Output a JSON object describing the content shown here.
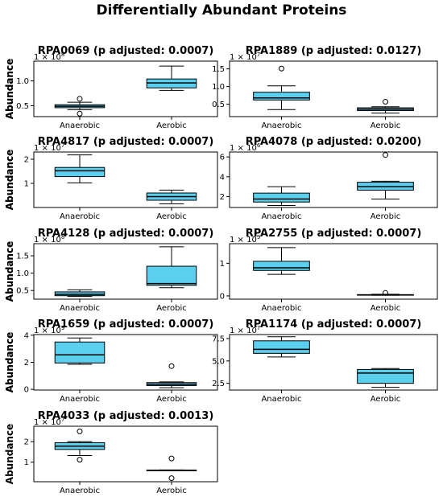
{
  "figure": {
    "title": "Differentially Abundant Proteins"
  },
  "style": {
    "box_fill": "#5bcfee",
    "edge": "#000000"
  },
  "chart_data": [
    {
      "type": "box",
      "title": "RPA0069 (p adjusted: 0.0007)",
      "ylabel": "Abundance",
      "categories": [
        "Anaerobic",
        "Aerobic"
      ],
      "exponent": "8",
      "ylim": [
        0.28,
        1.4
      ],
      "yticks": [
        {
          "v": 0.5,
          "label": "0.5"
        },
        {
          "v": 1.0,
          "label": "1.0"
        }
      ],
      "boxes": [
        {
          "whislo": 0.42,
          "q1": 0.46,
          "med": 0.49,
          "q3": 0.52,
          "whishi": 0.57,
          "fliers": [
            0.64,
            0.34
          ]
        },
        {
          "whislo": 0.81,
          "q1": 0.86,
          "med": 0.96,
          "q3": 1.04,
          "whishi": 1.3,
          "fliers": []
        }
      ]
    },
    {
      "type": "box",
      "title": "RPA1889 (p adjusted: 0.0127)",
      "ylabel": "Abundance",
      "categories": [
        "Anaerobic",
        "Aerobic"
      ],
      "exponent": "7",
      "ylim": [
        0.15,
        1.72
      ],
      "yticks": [
        {
          "v": 0.5,
          "label": "0.5"
        },
        {
          "v": 1.0,
          "label": "1.0"
        },
        {
          "v": 1.5,
          "label": "1.5"
        }
      ],
      "boxes": [
        {
          "whislo": 0.35,
          "q1": 0.62,
          "med": 0.68,
          "q3": 0.84,
          "whishi": 1.02,
          "fliers": [
            1.51
          ]
        },
        {
          "whislo": 0.25,
          "q1": 0.32,
          "med": 0.36,
          "q3": 0.4,
          "whishi": 0.43,
          "fliers": [
            0.57
          ]
        }
      ]
    },
    {
      "type": "box",
      "title": "RPA4817 (p adjusted: 0.0007)",
      "ylabel": "Abundance",
      "categories": [
        "Anaerobic",
        "Aerobic"
      ],
      "exponent": "7",
      "ylim": [
        0.0,
        2.3
      ],
      "yticks": [
        {
          "v": 1,
          "label": "1"
        },
        {
          "v": 2,
          "label": "2"
        }
      ],
      "boxes": [
        {
          "whislo": 1.02,
          "q1": 1.28,
          "med": 1.52,
          "q3": 1.66,
          "whishi": 2.18,
          "fliers": []
        },
        {
          "whislo": 0.15,
          "q1": 0.3,
          "med": 0.45,
          "q3": 0.6,
          "whishi": 0.72,
          "fliers": []
        }
      ]
    },
    {
      "type": "box",
      "title": "RPA4078 (p adjusted: 0.0200)",
      "ylabel": "Abundance",
      "categories": [
        "Anaerobic",
        "Aerobic"
      ],
      "exponent": "6",
      "ylim": [
        0.9,
        6.5
      ],
      "yticks": [
        {
          "v": 2,
          "label": "2"
        },
        {
          "v": 4,
          "label": "4"
        },
        {
          "v": 6,
          "label": "6"
        }
      ],
      "boxes": [
        {
          "whislo": 1.1,
          "q1": 1.45,
          "med": 1.75,
          "q3": 2.35,
          "whishi": 3.0,
          "fliers": []
        },
        {
          "whislo": 1.75,
          "q1": 2.65,
          "med": 3.0,
          "q3": 3.45,
          "whishi": 3.55,
          "fliers": [
            6.2
          ]
        }
      ]
    },
    {
      "type": "box",
      "title": "RPA4128 (p adjusted: 0.0007)",
      "ylabel": "Abundance",
      "categories": [
        "Anaerobic",
        "Aerobic"
      ],
      "exponent": "8",
      "ylim": [
        0.25,
        1.85
      ],
      "yticks": [
        {
          "v": 0.5,
          "label": "0.5"
        },
        {
          "v": 1.0,
          "label": "1.0"
        },
        {
          "v": 1.5,
          "label": "1.5"
        }
      ],
      "boxes": [
        {
          "whislo": 0.33,
          "q1": 0.35,
          "med": 0.39,
          "q3": 0.46,
          "whishi": 0.52,
          "fliers": []
        },
        {
          "whislo": 0.58,
          "q1": 0.65,
          "med": 0.7,
          "q3": 1.2,
          "whishi": 1.76,
          "fliers": []
        }
      ]
    },
    {
      "type": "box",
      "title": "RPA2755 (p adjusted: 0.0007)",
      "ylabel": "Abundance",
      "categories": [
        "Anaerobic",
        "Aerobic"
      ],
      "exponent": "9",
      "ylim": [
        -0.1,
        1.6
      ],
      "yticks": [
        {
          "v": 0,
          "label": "0"
        },
        {
          "v": 1,
          "label": "1"
        }
      ],
      "boxes": [
        {
          "whislo": 0.66,
          "q1": 0.78,
          "med": 0.86,
          "q3": 1.06,
          "whishi": 1.48,
          "fliers": []
        },
        {
          "whislo": 0.02,
          "q1": 0.03,
          "med": 0.03,
          "q3": 0.04,
          "whishi": 0.05,
          "fliers": [
            0.09
          ]
        }
      ]
    },
    {
      "type": "box",
      "title": "RPA1659 (p adjusted: 0.0007)",
      "ylabel": "Abundance",
      "categories": [
        "Anaerobic",
        "Aerobic"
      ],
      "exponent": "9",
      "ylim": [
        -0.05,
        4.05
      ],
      "yticks": [
        {
          "v": 0,
          "label": "0"
        },
        {
          "v": 2,
          "label": "2"
        },
        {
          "v": 4,
          "label": "4"
        }
      ],
      "boxes": [
        {
          "whislo": 1.85,
          "q1": 1.95,
          "med": 2.55,
          "q3": 3.5,
          "whishi": 3.8,
          "fliers": []
        },
        {
          "whislo": 0.12,
          "q1": 0.28,
          "med": 0.38,
          "q3": 0.5,
          "whishi": 0.55,
          "fliers": [
            1.72
          ]
        }
      ]
    },
    {
      "type": "box",
      "title": "RPA1174 (p adjusted: 0.0007)",
      "ylabel": "Abundance",
      "categories": [
        "Anaerobic",
        "Aerobic"
      ],
      "exponent": "7",
      "ylim": [
        1.75,
        7.95
      ],
      "yticks": [
        {
          "v": 2.5,
          "label": "2.5"
        },
        {
          "v": 5.0,
          "label": "5.0"
        },
        {
          "v": 7.5,
          "label": "7.5"
        }
      ],
      "boxes": [
        {
          "whislo": 5.45,
          "q1": 5.85,
          "med": 6.3,
          "q3": 7.25,
          "whishi": 7.7,
          "fliers": []
        },
        {
          "whislo": 2.05,
          "q1": 2.5,
          "med": 3.65,
          "q3": 4.05,
          "whishi": 4.15,
          "fliers": []
        }
      ]
    },
    {
      "type": "box",
      "title": "RPA4033 (p adjusted: 0.0013)",
      "ylabel": "Abundance",
      "categories": [
        "Anaerobic",
        "Aerobic"
      ],
      "exponent": "7",
      "ylim": [
        0.05,
        2.75
      ],
      "yticks": [
        {
          "v": 1,
          "label": "1"
        },
        {
          "v": 2,
          "label": "2"
        }
      ],
      "boxes": [
        {
          "whislo": 1.32,
          "q1": 1.62,
          "med": 1.78,
          "q3": 1.95,
          "whishi": 2.0,
          "fliers": [
            2.5,
            1.12
          ]
        },
        {
          "whislo": 0.6,
          "q1": 0.6,
          "med": 0.6,
          "q3": 0.62,
          "whishi": 0.62,
          "fliers": [
            1.18,
            0.22
          ]
        }
      ]
    }
  ]
}
